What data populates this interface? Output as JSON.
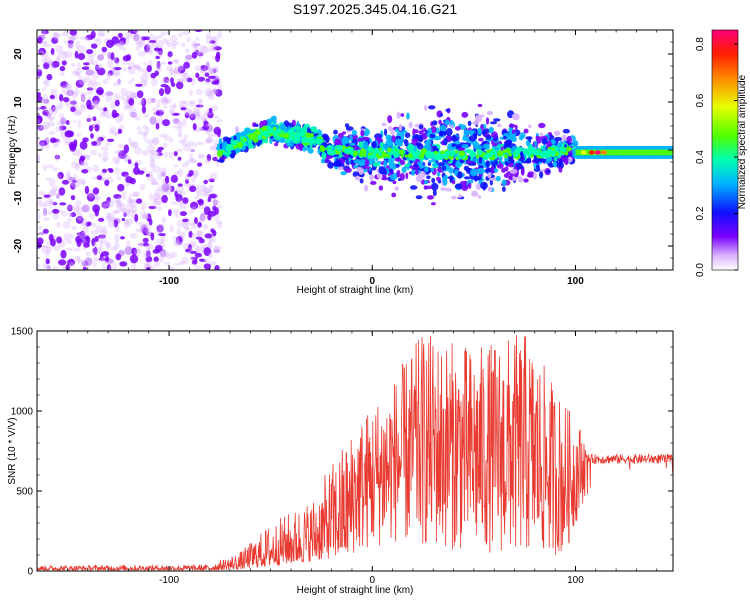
{
  "title": "S197.2025.345.04.16.G21",
  "chart_data": [
    {
      "type": "heatmap",
      "name": "spectrogram",
      "xlabel": "Height of straight line (km)",
      "ylabel": "Frequency (Hz)",
      "xlim": [
        -165,
        148
      ],
      "ylim": [
        -25,
        25
      ],
      "xticks": [
        "-100",
        "0",
        "100"
      ],
      "yticks": [
        "-20",
        "-10",
        "0",
        "10",
        "20"
      ],
      "colorbar": {
        "label": "Normalized spectral amplitude",
        "range": [
          0,
          0.85
        ],
        "ticks": [
          "0.0",
          "0.2",
          "0.4",
          "0.6",
          "0.8"
        ]
      },
      "regions": [
        {
          "x_range": [
            -165,
            -75
          ],
          "description": "noise",
          "amplitude": [
            0.0,
            0.12
          ],
          "freq_range": [
            -25,
            25
          ]
        },
        {
          "x_range": [
            -75,
            -25
          ],
          "center_freq": [
            0,
            4,
            2
          ],
          "amplitude": [
            0.2,
            0.4
          ]
        },
        {
          "x_range": [
            -25,
            100
          ],
          "center_freq": [
            0,
            -1,
            0
          ],
          "spread_hz": [
            6,
            9,
            3
          ],
          "amplitude": [
            0.05,
            0.35
          ]
        },
        {
          "x_range": [
            100,
            148
          ],
          "center_freq": [
            -0.5,
            -0.5
          ],
          "amplitude": [
            0.4,
            0.8
          ]
        }
      ]
    },
    {
      "type": "line",
      "name": "snr",
      "xlabel": "Height of straight line (km)",
      "ylabel": "SNR (10 * V/V)",
      "xlim": [
        -165,
        148
      ],
      "ylim": [
        0,
        1500
      ],
      "xticks": [
        "-100",
        "0",
        "100"
      ],
      "yticks": [
        "0",
        "500",
        "1000",
        "1500"
      ],
      "color": "#e83a30",
      "series_envelope": [
        {
          "x": -165,
          "min": 5,
          "max": 35
        },
        {
          "x": -80,
          "min": 5,
          "max": 40
        },
        {
          "x": -65,
          "min": 10,
          "max": 120
        },
        {
          "x": -50,
          "min": 30,
          "max": 300
        },
        {
          "x": -30,
          "min": 60,
          "max": 450
        },
        {
          "x": -10,
          "min": 100,
          "max": 900
        },
        {
          "x": 10,
          "min": 180,
          "max": 1200
        },
        {
          "x": 25,
          "min": 150,
          "max": 1500
        },
        {
          "x": 50,
          "min": 120,
          "max": 1400
        },
        {
          "x": 75,
          "min": 100,
          "max": 1500
        },
        {
          "x": 95,
          "min": 100,
          "max": 1050
        },
        {
          "x": 103,
          "min": 400,
          "max": 900
        },
        {
          "x": 110,
          "min": 650,
          "max": 760
        },
        {
          "x": 148,
          "min": 650,
          "max": 760
        }
      ]
    }
  ]
}
